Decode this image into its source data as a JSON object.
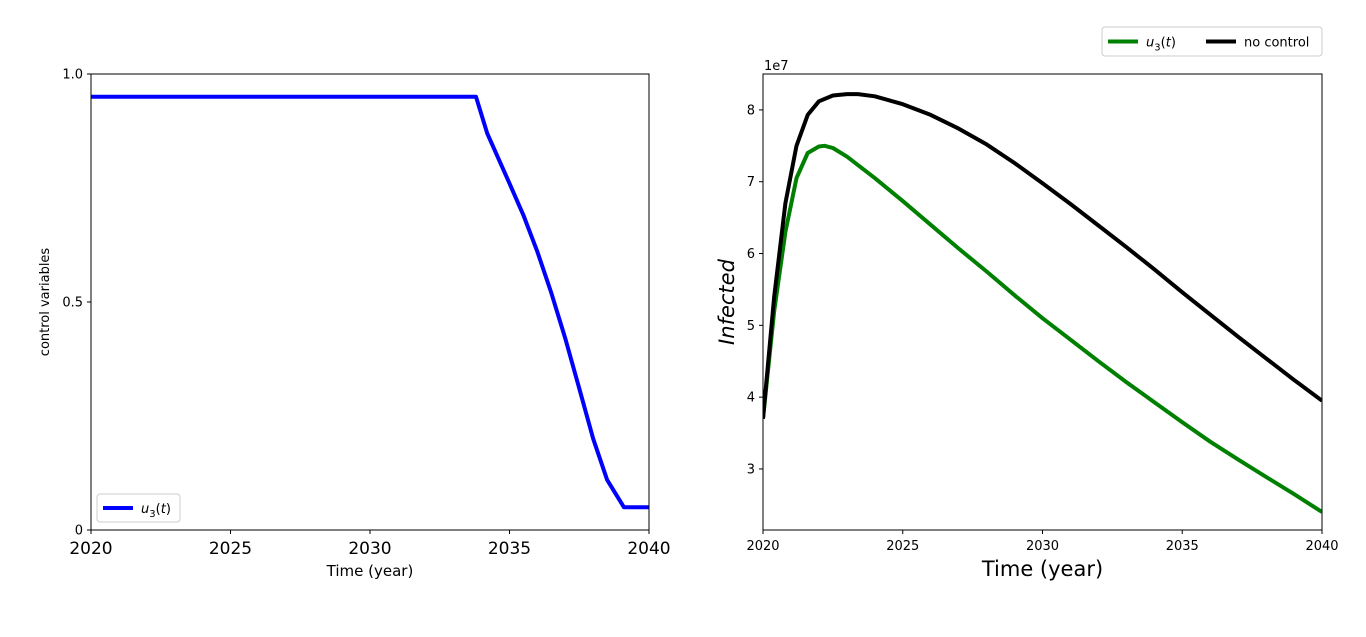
{
  "chart_data": [
    {
      "type": "line",
      "xlabel": "Time (year)",
      "ylabel": "control variables",
      "xlim": [
        2020,
        2040
      ],
      "ylim": [
        0,
        1
      ],
      "xticks": [
        2020,
        2025,
        2030,
        2035,
        2040
      ],
      "xtick_labels": [
        "2020",
        "2025",
        "2030",
        "2035",
        "2040"
      ],
      "yticks": [
        0,
        0.5,
        1
      ],
      "ytick_labels": [
        "0",
        "0.5",
        "1.0"
      ],
      "grid": false,
      "legend": "lower-left",
      "series": [
        {
          "name": "u3(t)",
          "color": "#0000ff",
          "x": [
            2020,
            2022,
            2024,
            2026,
            2028,
            2030,
            2032,
            2033.8,
            2034.2,
            2035,
            2035.5,
            2036,
            2036.5,
            2037,
            2037.5,
            2038,
            2038.5,
            2039.1,
            2039.5,
            2040
          ],
          "y": [
            0.95,
            0.95,
            0.95,
            0.95,
            0.95,
            0.95,
            0.95,
            0.95,
            0.87,
            0.76,
            0.69,
            0.61,
            0.52,
            0.42,
            0.31,
            0.2,
            0.11,
            0.05,
            0.05,
            0.05
          ]
        }
      ]
    },
    {
      "type": "line",
      "xlabel": "Time (year)",
      "ylabel": "Infected",
      "offset_label": "1e7",
      "xlim": [
        2020,
        2040
      ],
      "ylim": [
        21500000,
        85000000
      ],
      "xticks": [
        2020,
        2025,
        2030,
        2035,
        2040
      ],
      "xtick_labels": [
        "2020",
        "2025",
        "2030",
        "2035",
        "2040"
      ],
      "yticks": [
        30000000,
        40000000,
        50000000,
        60000000,
        70000000,
        80000000
      ],
      "ytick_labels": [
        "3",
        "4",
        "5",
        "6",
        "7",
        "8"
      ],
      "grid": false,
      "legend": "top-right",
      "series": [
        {
          "name": "u3(t)",
          "color": "#008000",
          "x": [
            2020,
            2020.4,
            2020.8,
            2021.2,
            2021.6,
            2022,
            2022.2,
            2022.5,
            2023,
            2024,
            2025,
            2026,
            2027,
            2028,
            2029,
            2030,
            2031,
            2032,
            2033,
            2034,
            2035,
            2036,
            2037,
            2038,
            2039,
            2040
          ],
          "y": [
            37000000,
            52000000,
            63000000,
            70500000,
            74000000,
            74900000,
            75000000,
            74700000,
            73500000,
            70500000,
            67300000,
            64000000,
            60700000,
            57500000,
            54200000,
            51000000,
            48000000,
            45000000,
            42100000,
            39300000,
            36500000,
            33800000,
            31300000,
            28900000,
            26500000,
            24000000
          ]
        },
        {
          "name": "no control",
          "color": "#000000",
          "x": [
            2020,
            2020.4,
            2020.8,
            2021.2,
            2021.6,
            2022,
            2022.5,
            2023,
            2023.4,
            2024,
            2025,
            2026,
            2027,
            2028,
            2029,
            2030,
            2031,
            2032,
            2033,
            2034,
            2035,
            2036,
            2037,
            2038,
            2039,
            2040
          ],
          "y": [
            37000000,
            54000000,
            67000000,
            75000000,
            79300000,
            81200000,
            82000000,
            82200000,
            82200000,
            81900000,
            80800000,
            79300000,
            77400000,
            75200000,
            72600000,
            69800000,
            66900000,
            63900000,
            60900000,
            57800000,
            54600000,
            51500000,
            48400000,
            45400000,
            42400000,
            39500000
          ]
        }
      ]
    }
  ]
}
